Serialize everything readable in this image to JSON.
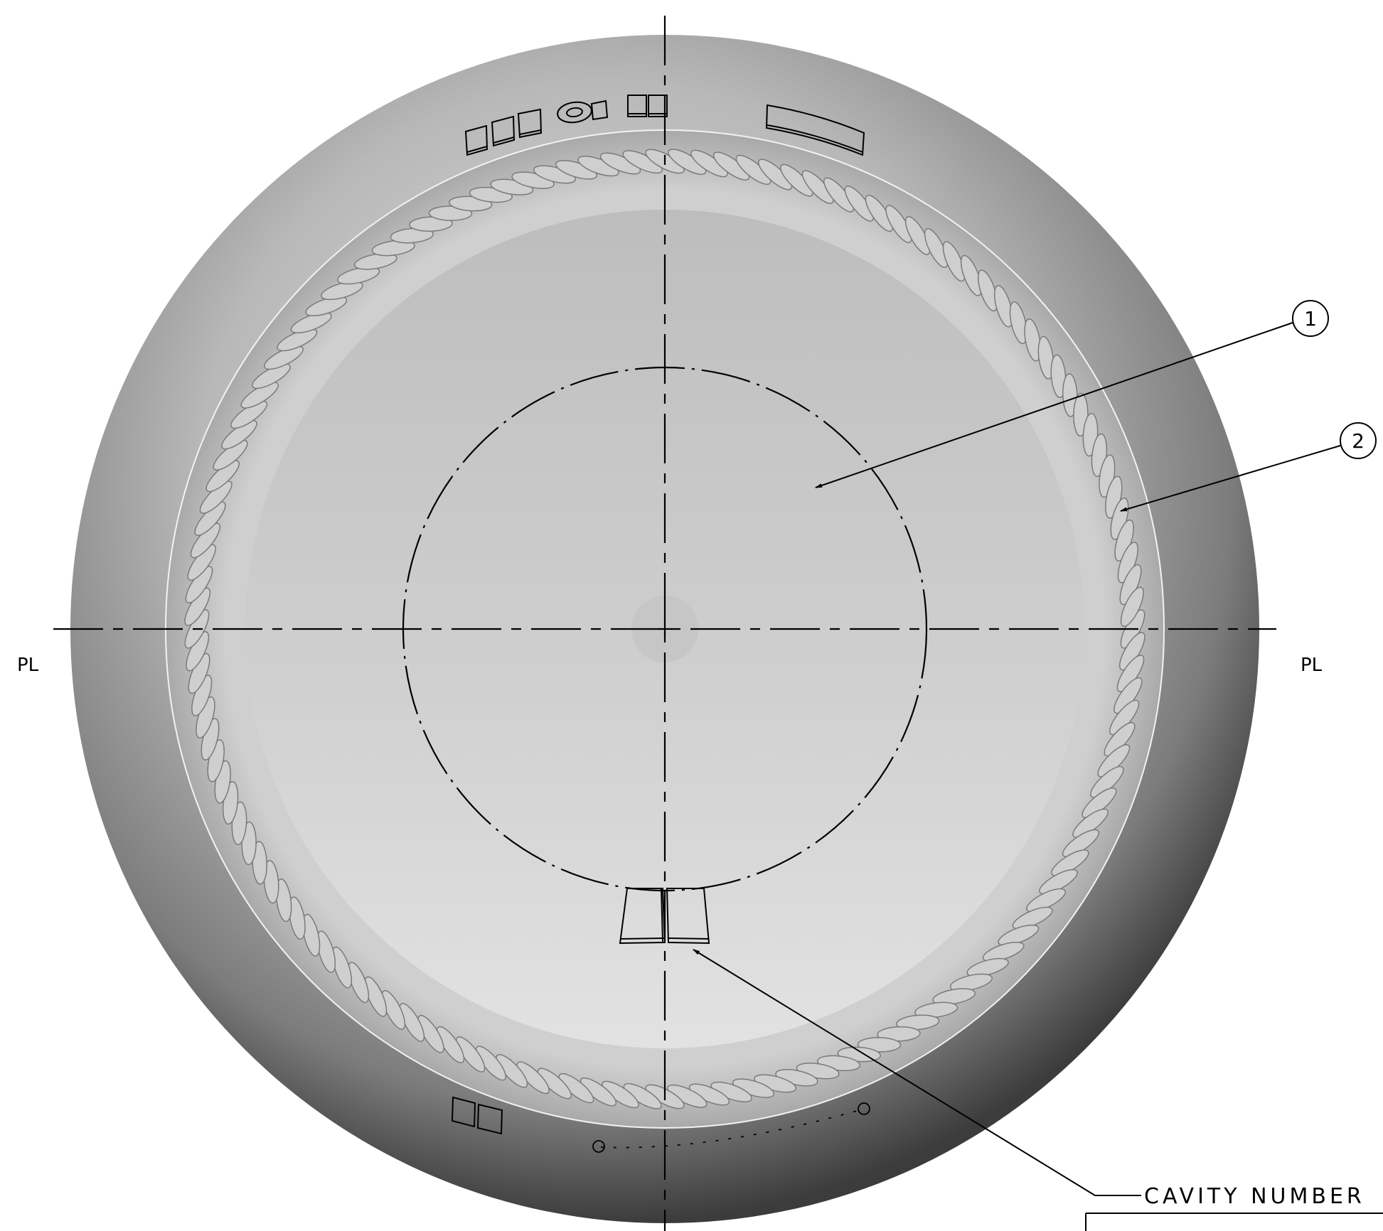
{
  "balloons": [
    {
      "number": "1",
      "target": "inner-dome-surface"
    },
    {
      "number": "2",
      "target": "knurled-grip-ring"
    }
  ],
  "parting_line": {
    "left": "PL",
    "right": "PL"
  },
  "callout": {
    "text": "CAVITY NUMBER"
  },
  "colors": {
    "line": "#000000",
    "body_light": "#e6e6e6",
    "body_dark": "#3a3a3a"
  }
}
